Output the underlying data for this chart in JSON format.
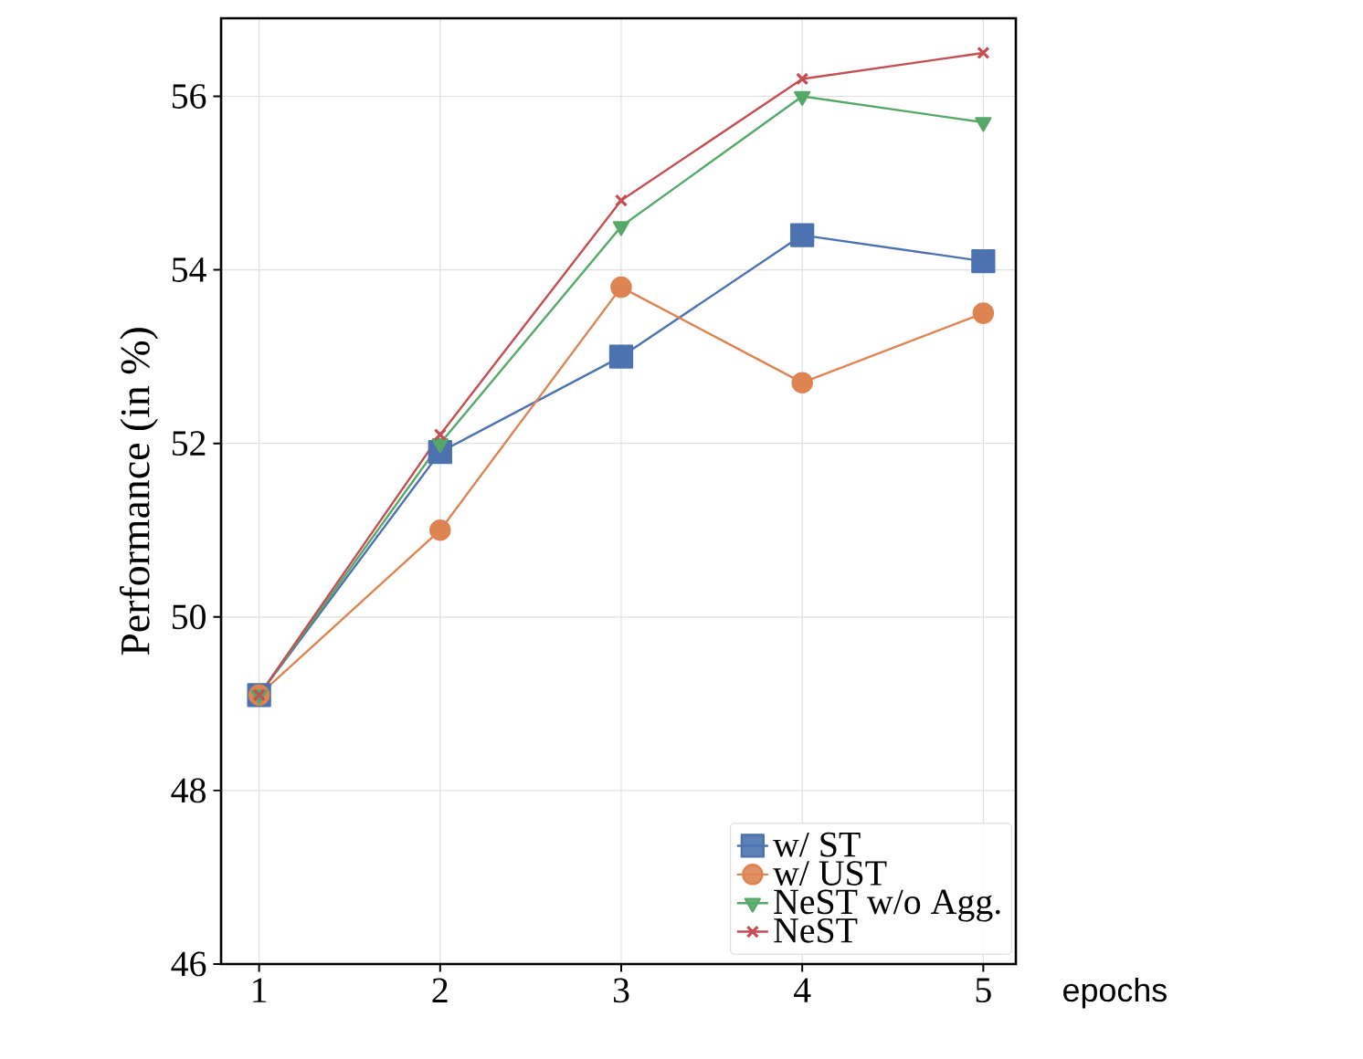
{
  "chart_data": {
    "type": "line",
    "xlabel": "epochs",
    "ylabel": "Performance (in %)",
    "x": [
      1,
      2,
      3,
      4,
      5
    ],
    "series": [
      {
        "name": "w/ ST",
        "color": "#4c72b0",
        "marker": "square",
        "values": [
          49.1,
          51.9,
          53.0,
          54.4,
          54.1
        ]
      },
      {
        "name": "w/ UST",
        "color": "#dd8452",
        "marker": "circle",
        "values": [
          49.1,
          51.0,
          53.8,
          52.7,
          53.5
        ]
      },
      {
        "name": "NeST w/o Agg.",
        "color": "#55a868",
        "marker": "triangle",
        "values": [
          49.1,
          52.0,
          54.5,
          56.0,
          55.7
        ]
      },
      {
        "name": "NeST",
        "color": "#c44e52",
        "marker": "cross",
        "values": [
          49.1,
          52.1,
          54.8,
          56.2,
          56.5
        ]
      }
    ],
    "xlim": [
      0.79,
      5.18
    ],
    "ylim": [
      46,
      56.9
    ],
    "xticks": [
      1,
      2,
      3,
      4,
      5
    ],
    "yticks": [
      46,
      48,
      50,
      52,
      54,
      56
    ],
    "grid": true,
    "legend": "bottom right",
    "line_style": "solid"
  }
}
